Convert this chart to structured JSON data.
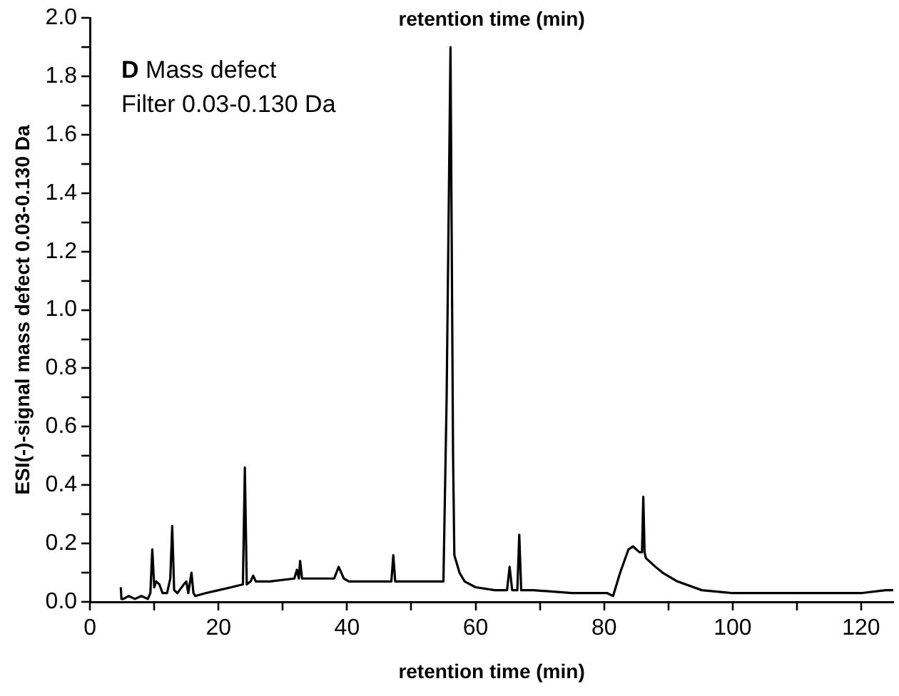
{
  "chart_data": {
    "type": "line",
    "xlabel": "retention time (min)",
    "x2label": "retention time (min)",
    "ylabel": "ESI(-)-signal mass defect 0.03-0.130 Da",
    "annotations": [
      "D Mass defect",
      "Filter 0.03-0.130 Da"
    ],
    "xlim": [
      0,
      125
    ],
    "xticks": [
      0,
      {
        "value": 10,
        "label": null
      },
      20,
      {
        "value": 30,
        "label": null
      },
      40,
      {
        "value": 50,
        "label": null
      },
      60,
      {
        "value": 70,
        "label": null
      },
      80,
      {
        "value": 90,
        "label": null
      },
      100,
      {
        "value": 110,
        "label": null
      },
      120
    ],
    "ylim": [
      0,
      2.0
    ],
    "yticks": [
      {
        "value": 0,
        "label": "0.0"
      },
      {
        "value": 0.1,
        "label": null
      },
      0.2,
      {
        "value": 0.3,
        "label": null
      },
      0.4,
      {
        "value": 0.5,
        "label": null
      },
      0.6,
      {
        "value": 0.7,
        "label": null
      },
      0.8,
      {
        "value": 0.9,
        "label": null
      },
      {
        "value": 1,
        "label": "1.0"
      },
      {
        "value": 1.1,
        "label": null
      },
      1.2,
      {
        "value": 1.3,
        "label": null
      },
      1.4,
      {
        "value": 1.5,
        "label": null
      },
      1.6,
      {
        "value": 1.7,
        "label": null
      },
      1.8,
      {
        "value": 1.9,
        "label": null
      },
      {
        "value": 2,
        "label": "2.0"
      }
    ],
    "grid": false,
    "legend": false,
    "marker": "none",
    "line_style": "solid",
    "series": [
      {
        "color": "#000000",
        "x": [
          4.8,
          4.9,
          5.2,
          6,
          7,
          8,
          9,
          9.4,
          9.7,
          10,
          10.3,
          10.8,
          11.3,
          12,
          12.5,
          12.8,
          13.1,
          13.6,
          14.6,
          15,
          15.3,
          15.8,
          16.1,
          16.4,
          18,
          20,
          22,
          23.8,
          24.1,
          24.4,
          25,
          25.4,
          25.8,
          28,
          31.8,
          32.2,
          32.5,
          32.7,
          33,
          36,
          38,
          38.7,
          39.5,
          40.3,
          44,
          46.9,
          47.2,
          47.5,
          52,
          55,
          55.5,
          56.1,
          56.5,
          56.7,
          57.5,
          58.3,
          60,
          63,
          64.9,
          65.3,
          65.7,
          66.5,
          66.8,
          67.1,
          69,
          75,
          80.5,
          81.4,
          82.5,
          83.8,
          84.5,
          85.5,
          85.9,
          86.1,
          86.3,
          86.5,
          88,
          89.1,
          91.4,
          95.2,
          100,
          108.4,
          115,
          120,
          123.8,
          125
        ],
        "values": [
          0.05,
          0.01,
          0.01,
          0.02,
          0.01,
          0.02,
          0.01,
          0.03,
          0.18,
          0.05,
          0.07,
          0.06,
          0.03,
          0.03,
          0.08,
          0.26,
          0.04,
          0.03,
          0.06,
          0.07,
          0.03,
          0.1,
          0.03,
          0.02,
          0.03,
          0.04,
          0.05,
          0.06,
          0.46,
          0.06,
          0.07,
          0.09,
          0.07,
          0.07,
          0.08,
          0.11,
          0.08,
          0.14,
          0.08,
          0.08,
          0.08,
          0.12,
          0.08,
          0.07,
          0.07,
          0.07,
          0.16,
          0.07,
          0.07,
          0.07,
          0.7,
          1.9,
          0.5,
          0.16,
          0.1,
          0.07,
          0.05,
          0.04,
          0.04,
          0.12,
          0.04,
          0.04,
          0.23,
          0.04,
          0.04,
          0.03,
          0.03,
          0.02,
          0.1,
          0.18,
          0.19,
          0.17,
          0.17,
          0.36,
          0.17,
          0.15,
          0.12,
          0.1,
          0.07,
          0.04,
          0.03,
          0.03,
          0.03,
          0.03,
          0.04,
          0.04
        ]
      }
    ]
  }
}
